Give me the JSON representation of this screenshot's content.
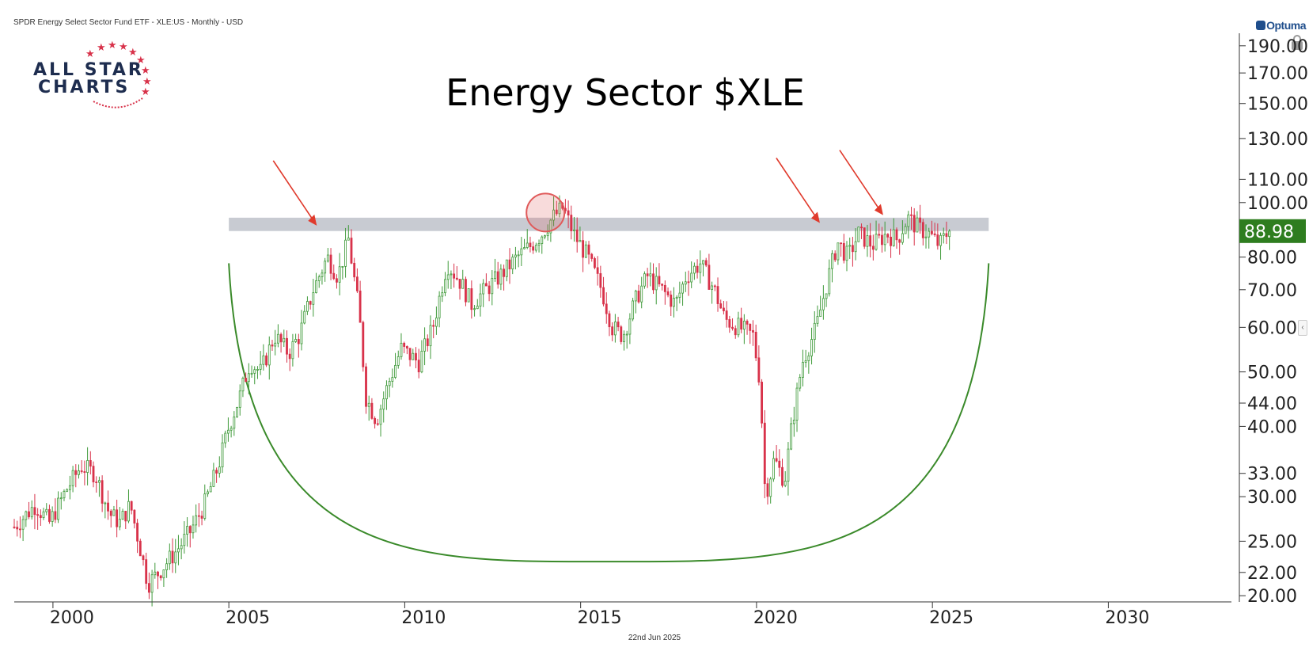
{
  "header": {
    "instrument": "SPDR Energy Select Sector Fund ETF - XLE:US - Monthly - USD",
    "brand": "Optuma"
  },
  "logo": {
    "line1": "ALL STAR",
    "line2": "CHARTS"
  },
  "footer": {
    "date": "22nd Jun 2025"
  },
  "price_badge": {
    "value": "88.98",
    "color": "#2e7d1f"
  },
  "colors": {
    "up": "#3f9a3a",
    "down": "#d8324a",
    "resistance": "#c8cbd2",
    "arc": "#3a8a2a",
    "arrow": "#e03a2c",
    "circle": "#e05a5a"
  },
  "chart_data": {
    "type": "candlestick",
    "title": "Energy Sector $XLE",
    "scale": "log",
    "ylim": [
      19.5,
      200
    ],
    "xlim": [
      1998.9,
      2033.5
    ],
    "y_ticks": [
      "20.00",
      "22.00",
      "25.00",
      "30.00",
      "33.00",
      "40.00",
      "44.00",
      "50.00",
      "60.00",
      "70.00",
      "80.00",
      "100.00",
      "110.00",
      "130.00",
      "150.00",
      "170.00",
      "190.00"
    ],
    "x_ticks": [
      "2000",
      "2005",
      "2010",
      "2015",
      "2020",
      "2025",
      "2030"
    ],
    "last_price": 88.98,
    "resistance_zone": {
      "low": 89,
      "high": 94,
      "from": 2005.0,
      "to": 2026.6
    },
    "annotations": [
      {
        "type": "arrow",
        "x": 2007.5,
        "y": 91
      },
      {
        "type": "circle",
        "x": 2014.0,
        "y": 96
      },
      {
        "type": "arrow",
        "x": 2021.8,
        "y": 92
      },
      {
        "type": "arrow",
        "x": 2023.6,
        "y": 95
      }
    ],
    "rounding_bottom": {
      "from": 2005.0,
      "to": 2026.6,
      "edge_value": 78,
      "min_value": 23
    },
    "series": [
      {
        "values": [
          [
            1998.9,
            26.5
          ],
          [
            1999.5,
            29
          ],
          [
            1999.9,
            27
          ],
          [
            2000.4,
            31
          ],
          [
            2000.8,
            34
          ],
          [
            2001.2,
            33
          ],
          [
            2001.6,
            28
          ],
          [
            2001.9,
            27
          ],
          [
            2002.2,
            29
          ],
          [
            2002.5,
            24
          ],
          [
            2002.7,
            21
          ],
          [
            2003.0,
            22
          ],
          [
            2003.5,
            24
          ],
          [
            2003.9,
            26
          ],
          [
            2004.3,
            29
          ],
          [
            2004.7,
            34
          ],
          [
            2005.0,
            40
          ],
          [
            2005.3,
            45
          ],
          [
            2005.6,
            52
          ],
          [
            2005.9,
            50
          ],
          [
            2006.3,
            58
          ],
          [
            2006.7,
            54
          ],
          [
            2007.0,
            58
          ],
          [
            2007.4,
            70
          ],
          [
            2007.8,
            80
          ],
          [
            2008.1,
            74
          ],
          [
            2008.4,
            86
          ],
          [
            2008.7,
            64
          ],
          [
            2008.9,
            45
          ],
          [
            2009.2,
            41
          ],
          [
            2009.5,
            47
          ],
          [
            2009.9,
            55
          ],
          [
            2010.4,
            52
          ],
          [
            2010.8,
            60
          ],
          [
            2011.2,
            78
          ],
          [
            2011.6,
            72
          ],
          [
            2011.9,
            66
          ],
          [
            2012.3,
            70
          ],
          [
            2012.7,
            74
          ],
          [
            2013.2,
            80
          ],
          [
            2013.6,
            84
          ],
          [
            2013.9,
            88
          ],
          [
            2014.2,
            94
          ],
          [
            2014.5,
            98
          ],
          [
            2014.8,
            88
          ],
          [
            2015.2,
            80
          ],
          [
            2015.6,
            70
          ],
          [
            2015.9,
            60
          ],
          [
            2016.2,
            58
          ],
          [
            2016.6,
            68
          ],
          [
            2016.9,
            74
          ],
          [
            2017.3,
            70
          ],
          [
            2017.7,
            66
          ],
          [
            2018.0,
            74
          ],
          [
            2018.4,
            78
          ],
          [
            2018.8,
            70
          ],
          [
            2019.1,
            62
          ],
          [
            2019.5,
            60
          ],
          [
            2019.9,
            58
          ],
          [
            2020.1,
            48
          ],
          [
            2020.25,
            30
          ],
          [
            2020.5,
            35
          ],
          [
            2020.8,
            32
          ],
          [
            2021.0,
            40
          ],
          [
            2021.3,
            52
          ],
          [
            2021.7,
            60
          ],
          [
            2022.0,
            72
          ],
          [
            2022.3,
            85
          ],
          [
            2022.6,
            80
          ],
          [
            2022.9,
            88
          ],
          [
            2023.3,
            84
          ],
          [
            2023.7,
            88
          ],
          [
            2024.0,
            86
          ],
          [
            2024.3,
            94
          ],
          [
            2024.6,
            90
          ],
          [
            2024.9,
            88
          ],
          [
            2025.2,
            84
          ],
          [
            2025.45,
            88.98
          ]
        ]
      }
    ]
  }
}
